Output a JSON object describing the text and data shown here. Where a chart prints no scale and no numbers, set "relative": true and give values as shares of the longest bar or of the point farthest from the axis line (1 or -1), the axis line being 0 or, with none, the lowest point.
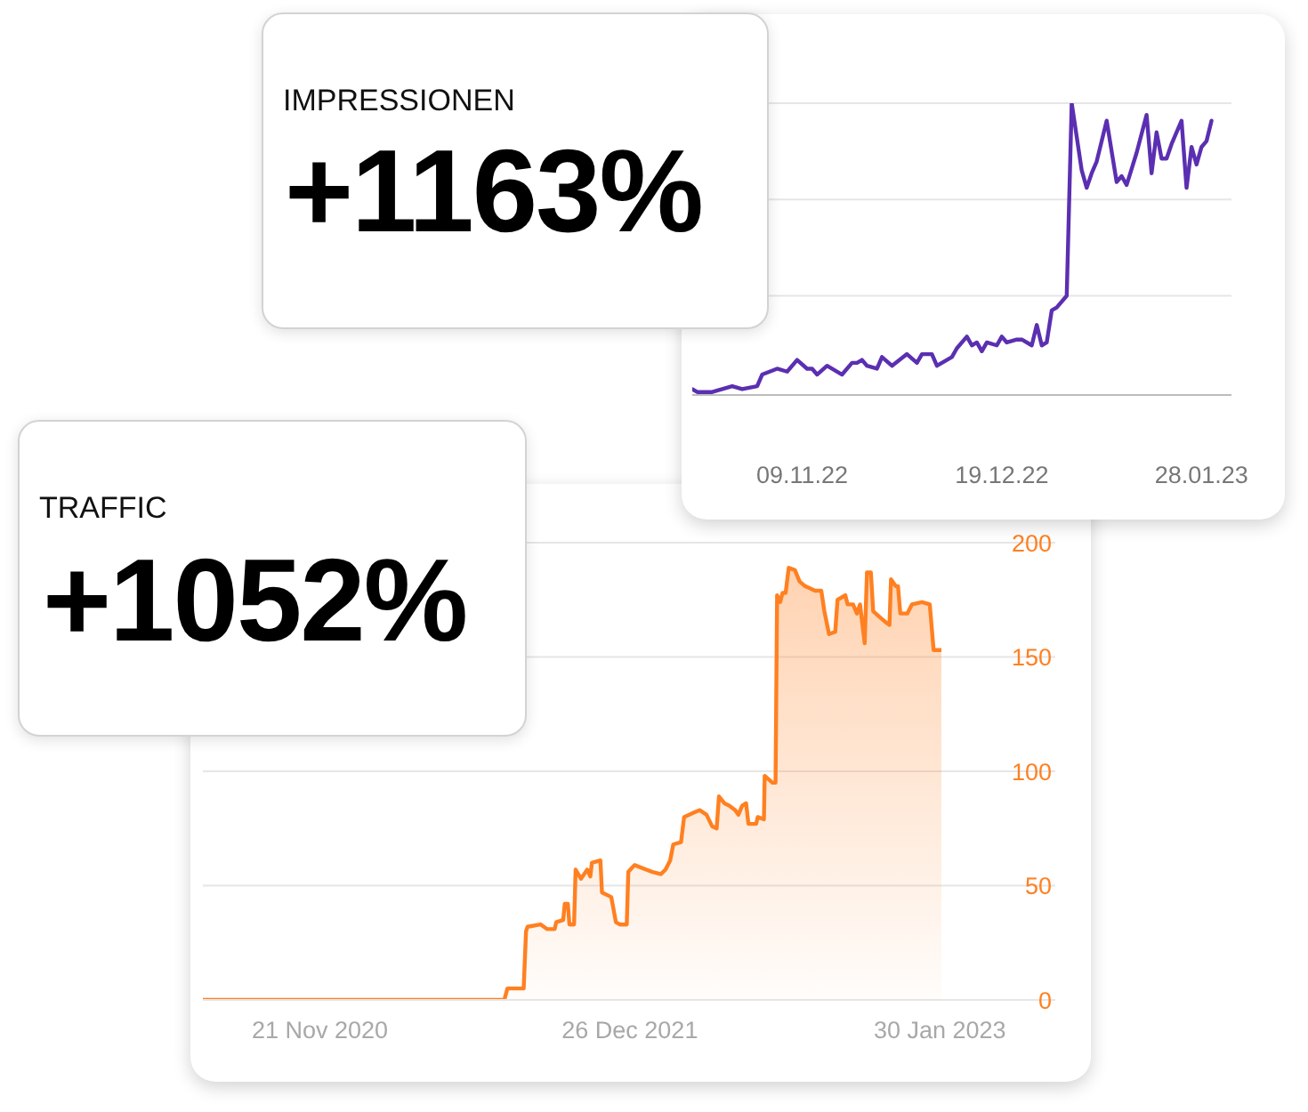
{
  "chart_data": [
    {
      "type": "other",
      "title": "IMPRESSIONEN",
      "annotations": [
        "+1163%"
      ]
    },
    {
      "type": "line",
      "color": "#5b2fb1",
      "relative": true,
      "x": [
        "2022-10-18",
        "2022-10-19",
        "2022-10-22",
        "2022-10-26",
        "2022-10-28",
        "2022-10-31",
        "2022-11-01",
        "2022-11-04",
        "2022-11-06",
        "2022-11-08",
        "2022-11-10",
        "2022-11-11",
        "2022-11-12",
        "2022-11-14",
        "2022-11-17",
        "2022-11-19",
        "2022-11-20",
        "2022-11-21",
        "2022-11-22",
        "2022-11-24",
        "2022-11-25",
        "2022-11-27",
        "2022-11-30",
        "2022-12-02",
        "2022-12-03",
        "2022-12-05",
        "2022-12-06",
        "2022-12-08",
        "2022-12-09",
        "2022-12-10",
        "2022-12-12",
        "2022-12-13",
        "2022-12-14",
        "2022-12-15",
        "2022-12-16",
        "2022-12-18",
        "2022-12-19",
        "2022-12-20",
        "2022-12-22",
        "2022-12-23",
        "2022-12-25",
        "2022-12-26",
        "2022-12-27",
        "2022-12-28",
        "2022-12-29",
        "2022-12-30",
        "2023-01-01",
        "2023-01-02",
        "2023-01-04",
        "2023-01-05",
        "2023-01-06",
        "2023-01-07",
        "2023-01-09",
        "2023-01-11",
        "2023-01-12",
        "2023-01-13",
        "2023-01-15",
        "2023-01-17",
        "2023-01-18",
        "2023-01-19",
        "2023-01-20",
        "2023-01-21",
        "2023-01-22",
        "2023-01-24",
        "2023-01-25",
        "2023-01-26",
        "2023-01-27",
        "2023-01-28",
        "2023-01-29",
        "2023-01-30"
      ],
      "values": [
        0.02,
        0.01,
        0.01,
        0.03,
        0.02,
        0.03,
        0.07,
        0.09,
        0.08,
        0.12,
        0.09,
        0.09,
        0.07,
        0.1,
        0.07,
        0.11,
        0.11,
        0.12,
        0.1,
        0.09,
        0.13,
        0.1,
        0.14,
        0.11,
        0.14,
        0.14,
        0.1,
        0.12,
        0.13,
        0.16,
        0.2,
        0.17,
        0.18,
        0.15,
        0.18,
        0.17,
        0.2,
        0.18,
        0.19,
        0.19,
        0.17,
        0.24,
        0.17,
        0.18,
        0.29,
        0.3,
        0.34,
        1,
        0.77,
        0.71,
        0.76,
        0.8,
        0.94,
        0.73,
        0.75,
        0.72,
        0.83,
        0.96,
        0.76,
        0.9,
        0.81,
        0.81,
        0.86,
        0.94,
        0.71,
        0.85,
        0.79,
        0.85,
        0.87,
        0.94
      ],
      "xlim": [
        "2022-10-18",
        "2023-02-03"
      ],
      "xticks": [
        {
          "value": "2022-11-09",
          "label": "09.11.22"
        },
        {
          "value": "2022-12-19",
          "label": "19.12.22"
        },
        {
          "value": "2023-01-28",
          "label": "28.01.23"
        }
      ],
      "ref_lines": [
        {
          "axis": "y",
          "value": 0.34,
          "color": "#e6e6e6"
        },
        {
          "axis": "y",
          "value": 0.67,
          "color": "#e6e6e6"
        },
        {
          "axis": "y",
          "value": 1,
          "color": "#e6e6e6"
        }
      ]
    },
    {
      "type": "other",
      "title": "TRAFFIC",
      "annotations": [
        "+1052%"
      ]
    },
    {
      "type": "area",
      "color": "#ff8021",
      "grid": "y",
      "x": [
        "2020-06-23",
        "2021-07-17",
        "2021-07-21",
        "2021-08-11",
        "2021-08-14",
        "2021-08-16",
        "2021-09-02",
        "2021-09-10",
        "2021-09-20",
        "2021-09-22",
        "2021-10-01",
        "2021-10-03",
        "2021-10-07",
        "2021-10-09",
        "2021-10-15",
        "2021-10-17",
        "2021-10-24",
        "2021-11-01",
        "2021-11-05",
        "2021-11-07",
        "2021-11-18",
        "2021-11-20",
        "2021-12-02",
        "2021-12-08",
        "2021-12-13",
        "2021-12-22",
        "2021-12-24",
        "2022-01-01",
        "2022-01-16",
        "2022-01-24",
        "2022-02-04",
        "2022-02-10",
        "2022-02-16",
        "2022-02-20",
        "2022-03-02",
        "2022-03-06",
        "2022-03-19",
        "2022-03-26",
        "2022-04-04",
        "2022-04-11",
        "2022-04-17",
        "2022-04-20",
        "2022-04-27",
        "2022-05-03",
        "2022-05-11",
        "2022-05-15",
        "2022-05-20",
        "2022-05-25",
        "2022-05-28",
        "2022-06-07",
        "2022-06-09",
        "2022-06-17",
        "2022-06-18",
        "2022-06-28",
        "2022-07-02",
        "2022-07-04",
        "2022-07-08",
        "2022-07-11",
        "2022-07-15",
        "2022-07-19",
        "2022-07-27",
        "2022-08-02",
        "2022-08-09",
        "2022-08-22",
        "2022-08-30",
        "2022-09-03",
        "2022-09-09",
        "2022-09-17",
        "2022-09-20",
        "2022-09-30",
        "2022-10-03",
        "2022-10-10",
        "2022-10-15",
        "2022-10-19",
        "2022-10-25",
        "2022-10-28",
        "2022-11-02",
        "2022-11-05",
        "2022-11-15",
        "2022-11-22",
        "2022-11-26",
        "2022-11-28",
        "2022-12-04",
        "2022-12-07",
        "2022-12-10",
        "2022-12-19",
        "2022-12-25",
        "2023-01-07",
        "2023-01-17",
        "2023-01-22",
        "2023-02-01"
      ],
      "values": [
        0,
        0,
        5,
        5,
        30,
        32,
        33,
        31,
        31,
        34,
        35,
        42,
        42,
        33,
        33,
        57,
        53,
        57,
        54,
        60,
        61,
        47,
        45,
        34,
        33,
        33,
        56,
        59,
        57,
        56,
        55,
        57,
        61,
        68,
        69,
        80,
        82,
        83,
        81,
        76,
        75,
        89,
        86,
        85,
        83,
        81,
        85,
        86,
        77,
        77,
        80,
        79,
        98,
        95,
        95,
        177,
        174,
        178,
        178,
        189,
        188,
        183,
        181,
        179,
        179,
        170,
        160,
        161,
        175,
        177,
        173,
        173,
        169,
        173,
        156,
        187,
        187,
        170,
        167,
        165,
        164,
        184,
        181,
        181,
        169,
        169,
        173,
        174,
        173,
        153,
        153
      ],
      "xlim": [
        "2020-06-23",
        "2023-06-28"
      ],
      "xticks": [
        {
          "value": "2020-11-21",
          "label": "21 Nov 2020"
        },
        {
          "value": "2021-12-26",
          "label": "26 Dec 2021"
        },
        {
          "value": "2023-01-30",
          "label": "30 Jan 2023"
        }
      ],
      "ylim": [
        0,
        200
      ],
      "yticks": [
        0,
        50,
        100,
        150,
        200
      ]
    }
  ]
}
